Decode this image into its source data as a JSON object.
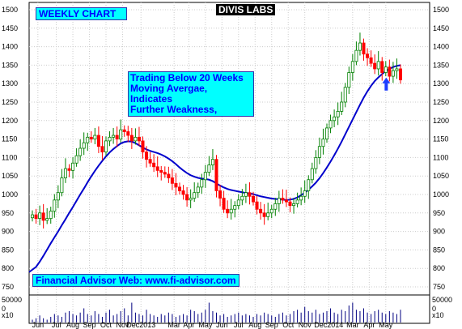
{
  "chart_data": {
    "type": "candlestick",
    "title": "WEEKLY CHART",
    "subtitle": "DIVIS LABS",
    "annotation": [
      "Trading Below 20 Weeks",
      "Moving Avergae, Indicates",
      "Further Weakness,"
    ],
    "footer": "Financial Advisor Web: www.fi-advisor.com",
    "volume_unit": "x10",
    "y_ticks": [
      750,
      800,
      850,
      900,
      950,
      1000,
      1050,
      1100,
      1150,
      1200,
      1250,
      1300,
      1350,
      1400,
      1450,
      1500
    ],
    "volume_ticks": [
      50000,
      0
    ],
    "ylim": [
      740,
      1510
    ],
    "x_labels": [
      "Jun",
      "Jul",
      "Aug",
      "Sep",
      "Oct",
      "Nov",
      "Dec2013",
      "Mar",
      "Apr",
      "May",
      "Jun",
      "Jul",
      "Aug",
      "Sep",
      "Oct",
      "Nov",
      "Dec2014",
      "Mar",
      "Apr",
      "May"
    ],
    "x_label_weeks": [
      1.5,
      6.5,
      11,
      15.5,
      20,
      24.5,
      29.5,
      38.5,
      42.5,
      47,
      51.5,
      56,
      60.5,
      65,
      69.5,
      74,
      80.5,
      87,
      91.5,
      96
    ],
    "grid": true,
    "series": [
      {
        "kind": "ohlc",
        "close": [
          945,
          935,
          950,
          930,
          935,
          955,
          985,
          1005,
          1045,
          1070,
          1065,
          1085,
          1105,
          1125,
          1140,
          1155,
          1150,
          1160,
          1130,
          1115,
          1145,
          1155,
          1160,
          1150,
          1175,
          1170,
          1160,
          1145,
          1155,
          1145,
          1115,
          1095,
          1085,
          1075,
          1065,
          1060,
          1055,
          1045,
          1030,
          1020,
          1010,
          1000,
          985,
          990,
          1005,
          1020,
          1040,
          1060,
          1080,
          1095,
          1010,
          990,
          960,
          950,
          960,
          970,
          985,
          995,
          1005,
          995,
          980,
          960,
          950,
          940,
          950,
          960,
          975,
          990,
          985,
          980,
          970,
          975,
          985,
          995,
          1010,
          1040,
          1070,
          1100,
          1130,
          1150,
          1180,
          1200,
          1210,
          1225,
          1250,
          1290,
          1330,
          1360,
          1390,
          1410,
          1380,
          1370,
          1355,
          1340,
          1360,
          1330,
          1345,
          1320,
          1335,
          1340,
          1310
        ],
        "up": [
          1,
          0,
          1,
          0,
          1,
          1,
          1,
          1,
          1,
          1,
          0,
          1,
          1,
          1,
          1,
          1,
          0,
          1,
          0,
          0,
          1,
          1,
          1,
          0,
          1,
          0,
          0,
          0,
          1,
          0,
          0,
          0,
          0,
          0,
          0,
          0,
          0,
          0,
          0,
          0,
          0,
          0,
          0,
          1,
          1,
          1,
          1,
          1,
          1,
          1,
          0,
          0,
          0,
          0,
          1,
          1,
          1,
          1,
          1,
          0,
          0,
          0,
          0,
          0,
          1,
          1,
          1,
          1,
          0,
          0,
          0,
          1,
          1,
          1,
          1,
          1,
          1,
          1,
          1,
          1,
          1,
          1,
          1,
          1,
          1,
          1,
          1,
          1,
          1,
          1,
          0,
          0,
          0,
          0,
          1,
          0,
          1,
          0,
          1,
          1,
          0
        ]
      },
      {
        "name": "20 Weeks Moving Avergae",
        "kind": "line",
        "values": [
          790,
          804,
          818,
          834,
          851,
          868,
          884,
          900,
          917,
          933,
          950,
          966,
          983,
          1000,
          1016,
          1033,
          1049,
          1064,
          1078,
          1091,
          1103,
          1114,
          1123,
          1131,
          1138,
          1142,
          1144,
          1143,
          1139,
          1133,
          1127,
          1122,
          1118,
          1115,
          1112,
          1108,
          1103,
          1097,
          1090,
          1082,
          1073,
          1065,
          1058,
          1052,
          1048,
          1045,
          1043,
          1042,
          1040,
          1036,
          1030,
          1024,
          1019,
          1015,
          1012,
          1010,
          1008,
          1006,
          1004,
          1003,
          1001,
          998,
          995,
          993,
          991,
          989,
          988,
          987,
          986,
          985,
          986,
          988,
          992,
          998,
          1005,
          1013,
          1022,
          1032,
          1044,
          1058,
          1073,
          1089,
          1106,
          1124,
          1143,
          1163,
          1183,
          1203,
          1223,
          1243,
          1262,
          1279,
          1294,
          1307,
          1317,
          1326,
          1334,
          1340,
          1345,
          1348,
          1350
        ]
      }
    ],
    "volume": [
      2,
      3,
      5,
      3,
      2,
      4,
      6,
      5,
      4,
      7,
      8,
      6,
      5,
      7,
      10,
      6,
      5,
      8,
      6,
      4,
      7,
      9,
      5,
      6,
      8,
      10,
      5,
      14,
      7,
      6,
      5,
      9,
      6,
      5,
      4,
      6,
      5,
      7,
      6,
      4,
      5,
      6,
      5,
      9,
      8,
      6,
      7,
      9,
      14,
      8,
      7,
      5,
      6,
      4,
      5,
      6,
      7,
      5,
      6,
      5,
      4,
      6,
      5,
      7,
      6,
      5,
      4,
      6,
      7,
      5,
      6,
      8,
      9,
      7,
      11,
      8,
      7,
      9,
      6,
      7,
      8,
      10,
      7,
      6,
      9,
      8,
      12,
      14,
      9,
      8,
      10,
      7,
      6,
      8,
      9,
      7,
      6,
      8,
      7,
      6,
      9
    ],
    "arrow_week": 97
  }
}
